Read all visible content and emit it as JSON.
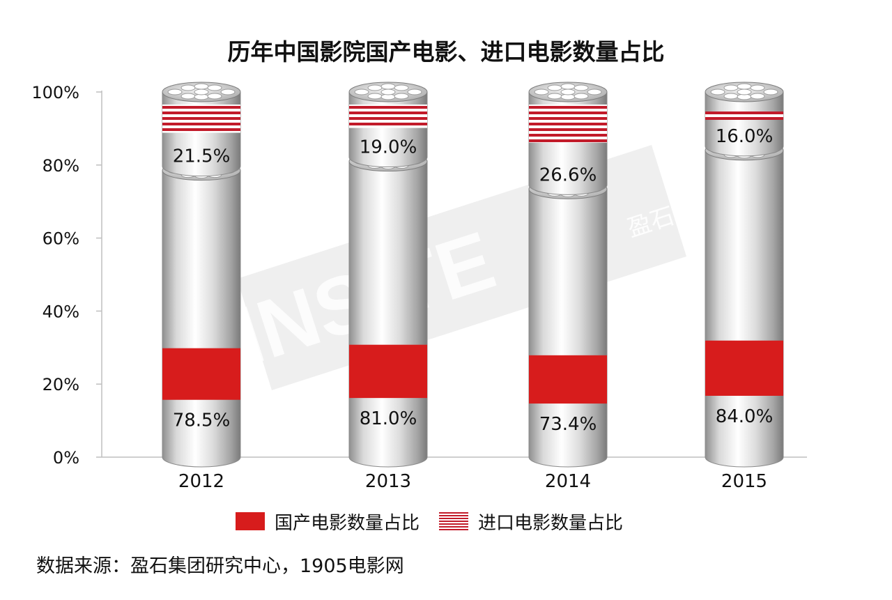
{
  "chart_data": {
    "type": "bar",
    "stacked": true,
    "title": "历年中国影院国产电影、进口电影数量占比",
    "categories": [
      "2012",
      "2013",
      "2014",
      "2015"
    ],
    "series": [
      {
        "name": "国产电影数量占比",
        "values": [
          78.5,
          81.0,
          73.4,
          84.0
        ],
        "labels": [
          "78.5%",
          "81.0%",
          "73.4%",
          "84.0%"
        ]
      },
      {
        "name": "进口电影数量占比",
        "values": [
          21.5,
          19.0,
          26.6,
          16.0
        ],
        "labels": [
          "21.5%",
          "19.0%",
          "26.6%",
          "16.0%"
        ]
      }
    ],
    "ylim": [
      0,
      100
    ],
    "yticks": [
      "0%",
      "20%",
      "40%",
      "60%",
      "80%",
      "100%"
    ],
    "grid": false,
    "legend_position": "bottom",
    "colors": {
      "domestic": "#d71c1c",
      "imported": "#c21b2a"
    }
  },
  "watermark": {
    "text": "INSITE",
    "sub": "盈石"
  },
  "source_note": "数据来源：盈石集团研究中心，1905电影网"
}
